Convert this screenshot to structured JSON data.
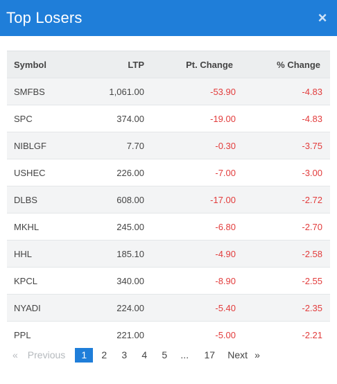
{
  "header": {
    "title": "Top Losers",
    "close_icon": "×"
  },
  "table": {
    "columns": [
      "Symbol",
      "LTP",
      "Pt. Change",
      "% Change"
    ],
    "rows": [
      {
        "symbol": "SMFBS",
        "ltp": "1,061.00",
        "pt_change": "-53.90",
        "pct_change": "-4.83"
      },
      {
        "symbol": "SPC",
        "ltp": "374.00",
        "pt_change": "-19.00",
        "pct_change": "-4.83"
      },
      {
        "symbol": "NIBLGF",
        "ltp": "7.70",
        "pt_change": "-0.30",
        "pct_change": "-3.75"
      },
      {
        "symbol": "USHEC",
        "ltp": "226.00",
        "pt_change": "-7.00",
        "pct_change": "-3.00"
      },
      {
        "symbol": "DLBS",
        "ltp": "608.00",
        "pt_change": "-17.00",
        "pct_change": "-2.72"
      },
      {
        "symbol": "MKHL",
        "ltp": "245.00",
        "pt_change": "-6.80",
        "pct_change": "-2.70"
      },
      {
        "symbol": "HHL",
        "ltp": "185.10",
        "pt_change": "-4.90",
        "pct_change": "-2.58"
      },
      {
        "symbol": "KPCL",
        "ltp": "340.00",
        "pt_change": "-8.90",
        "pct_change": "-2.55"
      },
      {
        "symbol": "NYADI",
        "ltp": "224.00",
        "pt_change": "-5.40",
        "pct_change": "-2.35"
      },
      {
        "symbol": "PPL",
        "ltp": "221.00",
        "pt_change": "-5.00",
        "pct_change": "-2.21"
      }
    ]
  },
  "pagination": {
    "prev_arrow": "«",
    "prev_label": "Previous",
    "pages": [
      "1",
      "2",
      "3",
      "4",
      "5"
    ],
    "ellipsis": "...",
    "last_page": "17",
    "next_label": "Next",
    "next_arrow": "»",
    "current_page": "1"
  },
  "colors": {
    "header_bg": "#1f7ed9",
    "negative": "#e23b3b",
    "active_page": "#1f7ed9"
  }
}
